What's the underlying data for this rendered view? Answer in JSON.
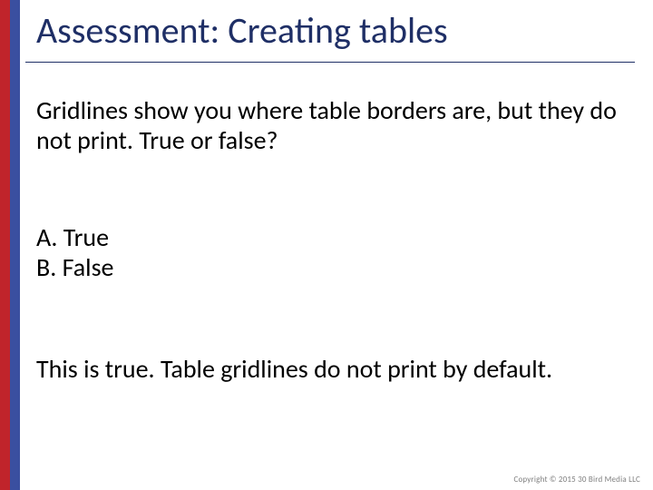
{
  "colors": {
    "stripe_blue": "#3a4fa0",
    "stripe_red": "#c0242b",
    "title_text": "#1f2f66",
    "underline": "#1f2f66",
    "body_text": "#000000",
    "footer_text": "#7f7f7f",
    "background": "#ffffff"
  },
  "layout": {
    "slide_width": 720,
    "slide_height": 540,
    "stripe_blue_width": 22,
    "stripe_red_width": 11,
    "title_fontsize": 40,
    "body_fontsize": 28,
    "footer_fontsize": 9
  },
  "title": "Assessment: Creating tables",
  "question": "Gridlines show you where table borders are, but they do not print. True or false?",
  "options": {
    "a": "A. True",
    "b": "B. False"
  },
  "answer": "This is true. Table gridlines do not print by default.",
  "footer": "Copyright © 2015 30 Bird Media LLC"
}
